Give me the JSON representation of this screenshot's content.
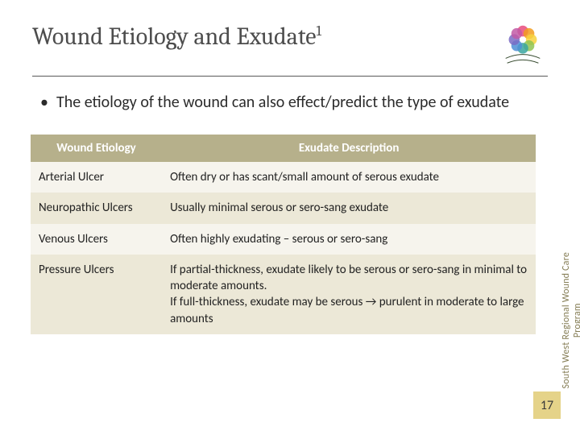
{
  "title": {
    "main": "Wound Etiology and Exudate",
    "sup": "1"
  },
  "bullet": "The etiology of the wound can also effect/predict the type of exudate",
  "table": {
    "headers": [
      "Wound Etiology",
      "Exudate Description"
    ],
    "rows": [
      [
        "Arterial Ulcer",
        "Often dry or has scant/small amount of serous exudate"
      ],
      [
        "Neuropathic Ulcers",
        "Usually minimal serous or sero-sang exudate"
      ],
      [
        "Venous Ulcers",
        "Often highly exudating – serous or sero-sang"
      ],
      [
        "Pressure Ulcers",
        "If partial-thickness, exudate likely to be serous or sero-sang in minimal to moderate amounts.\nIf full-thickness, exudate may be serous → purulent in moderate to large amounts"
      ]
    ],
    "header_bg": "#b6b08b",
    "header_fg": "#ffffff",
    "row_bg_odd": "#f6f4ed",
    "row_bg_even": "#ece8d7",
    "col1_width_pct": 26,
    "font_size": 15
  },
  "sidebar": {
    "line1": "South West Regional Wound Care",
    "line2": "Program"
  },
  "page_number": "17",
  "page_number_bg": "#e5d389",
  "colors": {
    "title": "#4d4d4d",
    "body_text": "#2b2b2b",
    "divider": "#5a5a5a",
    "sidebar": "#857d55"
  },
  "logo_colors": [
    "#e94b7d",
    "#f29c1f",
    "#f7d23e",
    "#8fc454",
    "#3aa6a0",
    "#4f8fd6",
    "#7a6bc4",
    "#c25aa6"
  ]
}
